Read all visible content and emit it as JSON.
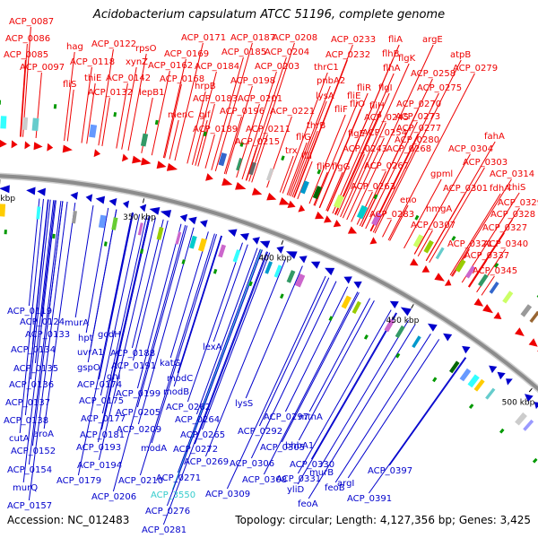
{
  "title": "Acidobacterium capsulatum ATCC 51196, complete genome",
  "footer": {
    "accession": "Accession: NC_012483",
    "stats": "Topology: circular; Length: 4,127,356 bp; Genes: 3,425"
  },
  "colors": {
    "forward": "#ee0000",
    "reverse": "#0000cc",
    "highlight": "#33cccc",
    "backbone": "#8c8c8c"
  },
  "kbp_ticks": [
    "150 kbp",
    "200 kbp",
    "250 kbp",
    "300 kbp",
    "350 kbp",
    "400 kbp",
    "450 kbp",
    "500 kbp"
  ],
  "forward_labels": [
    "ACP_0087",
    "ACP_0086",
    "ACP_0085",
    "ACP_0097",
    "hag",
    "fliS",
    "ACP_0118",
    "ACP_0122",
    "thiE",
    "ACP_0132",
    "ACP_0142",
    "xynZ",
    "rpsO",
    "lepB1",
    "ACP_0162",
    "ACP_0169",
    "ACP_0171",
    "ACP_0168",
    "hrpB",
    "ACP_0184",
    "ACP_0187",
    "ACP_0185",
    "ACP_0183",
    "menC",
    "glf",
    "ACP_0189",
    "ACP_0198",
    "ACP_0204",
    "ACP_0203",
    "ACP_0208",
    "ACP_0196",
    "ACP_0201",
    "ACP_0211",
    "ACP_0215",
    "ACP_0221",
    "thrB",
    "trx",
    "fliG",
    "fliI",
    "lysA",
    "thrC1",
    "pnbA2",
    "ACP_0233",
    "ACP_0232",
    "fliE",
    "fliF",
    "fliR",
    "fliO",
    "fliH",
    "fliP",
    "flgE",
    "ACP_0245",
    "ACP_0243",
    "flgG",
    "fliA",
    "argE",
    "flhA",
    "flhB",
    "flgK",
    "ACP_0258",
    "flgI",
    "ACP_0254",
    "ACP_0268",
    "ACP_0267",
    "ACP_0263",
    "ACP_0270",
    "ACP_0273",
    "ACP_0277",
    "ACP_0280",
    "ACP_0275",
    "atpB",
    "ACP_0279",
    "fahA",
    "ACP_0304",
    "ACP_0303",
    "gpml",
    "ACP_0301",
    "fdhA",
    "ACP_0314",
    "eno",
    "hmgA",
    "thiS",
    "ACP_0329",
    "ACP_0283",
    "ACP_0307",
    "ACP_0328",
    "ACP_0327",
    "ACP_0321",
    "ACP_0340",
    "ACP_0337",
    "ACP_0345"
  ],
  "reverse_labels": [
    "ACP_0119",
    "ACP_0124",
    "murA",
    "ACP_0133",
    "hpt",
    "gcdH",
    "ACP_0134",
    "uvrA1",
    "ACP_0188",
    "ACP_0135",
    "gspO",
    "ACP_0191",
    "ACP_0136",
    "ACP_0174",
    "gnl",
    "ACP_0137",
    "ACP_0175",
    "ACP_0199",
    "ACP_0138",
    "ACP_0177",
    "ACP_0205",
    "cutA",
    "aroA",
    "ACP_0181",
    "ACP_0152",
    "ACP_0193",
    "ACP_0209",
    "ACP_0154",
    "ACP_0194",
    "ACP_0179",
    "ACP_0210",
    "murQ",
    "ACP_0157",
    "ACP_0206",
    "katG",
    "modC",
    "modB",
    "modA",
    "lexA",
    "ACP_0262",
    "ACP_0264",
    "ACP_0265",
    "ACP_0272",
    "ACP_0269",
    "ACP_0271",
    "ACP_3550",
    "ACP_0276",
    "ACP_0281",
    "lysS",
    "ACP_0297",
    "ACP_0292",
    "ACP_0305",
    "ACP_0306",
    "ACP_0308",
    "ACP_0309",
    "mtnA",
    "bhbA1",
    "ACP_0330",
    "ACP_0331",
    "murB",
    "yliD",
    "feoB",
    "feoA",
    "argI",
    "ACP_0391",
    "ACP_0397"
  ]
}
